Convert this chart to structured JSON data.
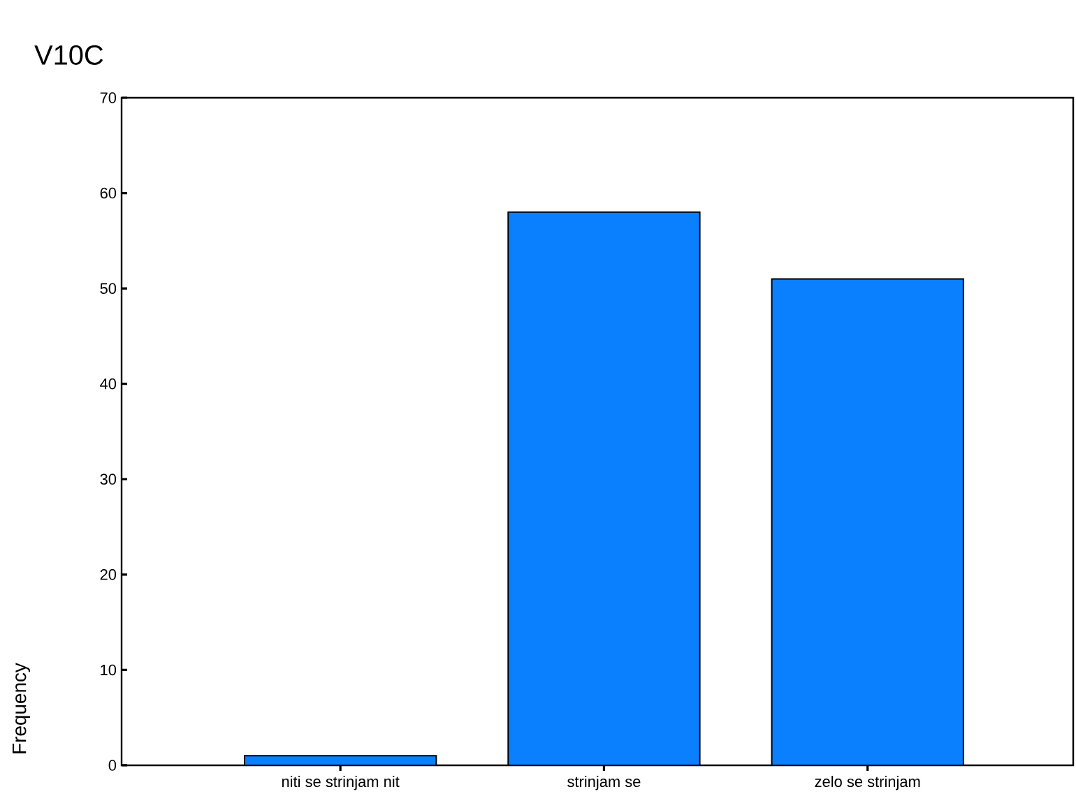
{
  "chart_data": {
    "type": "bar",
    "title": "V10C",
    "ylabel": "Frequency",
    "categories": [
      "niti se strinjam nit",
      "strinjam se",
      "zelo se strinjam"
    ],
    "values": [
      1,
      58,
      51
    ],
    "color": "#0a80ff",
    "ylim": [
      0,
      70
    ],
    "yticks": [
      0,
      10,
      20,
      30,
      40,
      50,
      60,
      70
    ],
    "grid": false
  }
}
